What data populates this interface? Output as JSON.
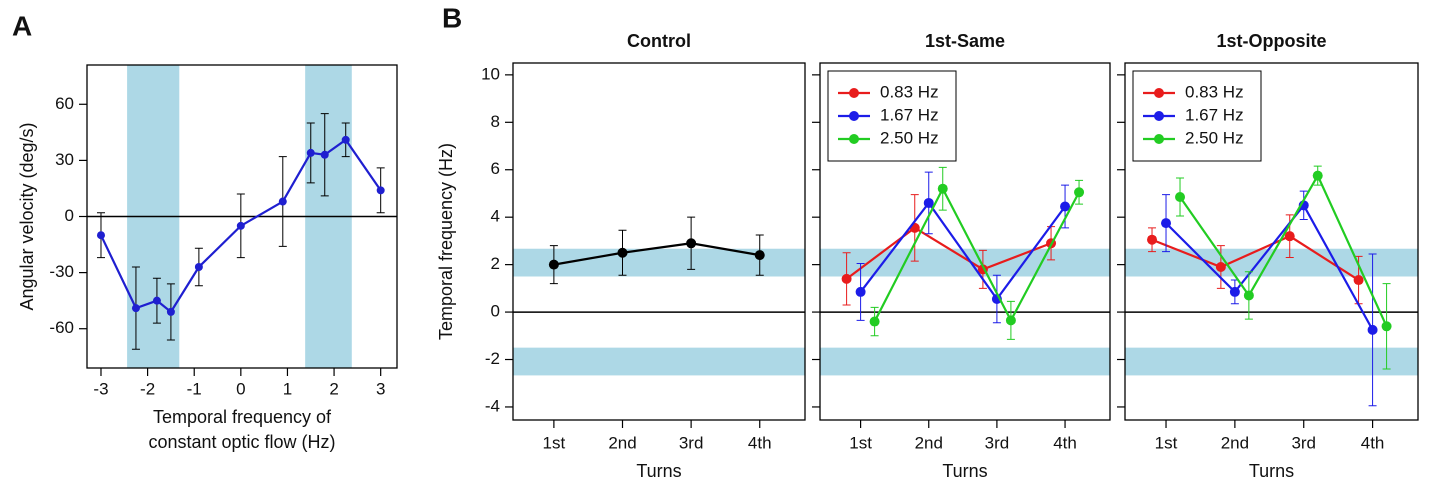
{
  "chart_data": [
    {
      "type": "line",
      "panel": "A",
      "ylabel": "Angular velocity (deg/s)",
      "xlabel": [
        "Temporal frequency of",
        "constant optic flow (Hz)"
      ],
      "x": [
        -3,
        -2.25,
        -1.8,
        -1.5,
        -0.9,
        0,
        0.9,
        1.5,
        1.8,
        2.25,
        3
      ],
      "series": [
        {
          "color": "#1f1fd0",
          "values": [
            -10,
            -49,
            -45,
            -51,
            -27,
            -5,
            8,
            34,
            33,
            41,
            14
          ],
          "errors": [
            12,
            22,
            12,
            15,
            10,
            17,
            24,
            16,
            22,
            9,
            12
          ]
        }
      ],
      "xlim": [
        -3.3,
        3.35
      ],
      "ylim": [
        -81,
        81
      ],
      "xticks": [
        -3,
        -2,
        -1,
        0,
        1,
        2,
        3
      ],
      "yticks": [
        -60,
        -30,
        0,
        30,
        60
      ],
      "xbands": [
        [
          -2.44,
          -1.32
        ],
        [
          1.38,
          2.38
        ]
      ],
      "band_color": "#add8e6",
      "hline": 0
    },
    {
      "type": "line",
      "panel": "B",
      "title": "Control",
      "ylabel": "Temporal frequency (Hz)",
      "xlabel": "Turns",
      "categories": [
        "1st",
        "2nd",
        "3rd",
        "4th"
      ],
      "series": [
        {
          "color": "#000000",
          "values": [
            2.0,
            2.5,
            2.9,
            2.4
          ],
          "errors": [
            0.8,
            0.95,
            1.1,
            0.85
          ]
        }
      ],
      "ylim": [
        -4.55,
        10.5
      ],
      "yticks": [
        -4,
        -2,
        0,
        2,
        4,
        6,
        8,
        10
      ],
      "ybands": [
        [
          1.5,
          2.67
        ],
        [
          -2.67,
          -1.5
        ]
      ],
      "band_color": "#add8e6",
      "hline": 0
    },
    {
      "type": "line",
      "title": "1st-Same",
      "xlabel": "Turns",
      "categories": [
        "1st",
        "2nd",
        "3rd",
        "4th"
      ],
      "series": [
        {
          "name": "0.83 Hz",
          "color": "#e81c1c",
          "values": [
            1.4,
            3.55,
            1.8,
            2.9
          ],
          "errors": [
            1.1,
            1.4,
            0.8,
            0.7
          ]
        },
        {
          "name": "1.67 Hz",
          "color": "#1c1ce8",
          "values": [
            0.85,
            4.6,
            0.55,
            4.45
          ],
          "errors": [
            1.2,
            1.3,
            1.0,
            0.9
          ]
        },
        {
          "name": "2.50 Hz",
          "color": "#22cc22",
          "values": [
            -0.4,
            5.2,
            -0.35,
            5.05
          ],
          "errors": [
            0.6,
            0.9,
            0.8,
            0.5
          ]
        }
      ],
      "ylim": [
        -4.55,
        10.5
      ],
      "yticks": [
        -4,
        -2,
        0,
        2,
        4,
        6,
        8,
        10
      ],
      "ybands": [
        [
          1.5,
          2.67
        ],
        [
          -2.67,
          -1.5
        ]
      ],
      "band_color": "#add8e6",
      "hline": 0,
      "legend": "top-left"
    },
    {
      "type": "line",
      "title": "1st-Opposite",
      "xlabel": "Turns",
      "categories": [
        "1st",
        "2nd",
        "3rd",
        "4th"
      ],
      "series": [
        {
          "name": "0.83 Hz",
          "color": "#e81c1c",
          "values": [
            3.05,
            1.9,
            3.2,
            1.35
          ],
          "errors": [
            0.5,
            0.9,
            0.9,
            1.0
          ]
        },
        {
          "name": "1.67 Hz",
          "color": "#1c1ce8",
          "values": [
            3.75,
            0.85,
            4.5,
            -0.75
          ],
          "errors": [
            1.2,
            0.5,
            0.6,
            3.2
          ]
        },
        {
          "name": "2.50 Hz",
          "color": "#22cc22",
          "values": [
            4.85,
            0.7,
            5.75,
            -0.6
          ],
          "errors": [
            0.8,
            1.0,
            0.4,
            1.8
          ]
        }
      ],
      "ylim": [
        -4.55,
        10.5
      ],
      "yticks": [
        -4,
        -2,
        0,
        2,
        4,
        6,
        8,
        10
      ],
      "ybands": [
        [
          1.5,
          2.67
        ],
        [
          -2.67,
          -1.5
        ]
      ],
      "band_color": "#add8e6",
      "hline": 0,
      "legend": "top-left"
    }
  ]
}
